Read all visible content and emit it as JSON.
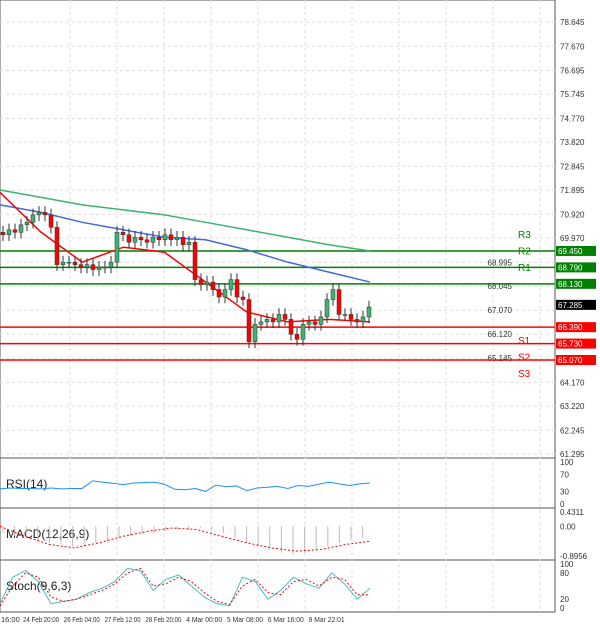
{
  "chart_data": [
    {
      "type": "candlestick",
      "title": "",
      "price_axis": {
        "range": [
          61.295,
          78.645
        ],
        "ticks": [
          "78.645",
          "77.670",
          "76.695",
          "75.745",
          "74.770",
          "73.820",
          "72.845",
          "71.895",
          "70.920",
          "69.970",
          "68.995",
          "68.045",
          "67.070",
          "66.120",
          "65.145",
          "64.170",
          "63.220",
          "62.245",
          "61.295"
        ]
      },
      "time_labels": [
        "16:00",
        "24 Feb 20:00",
        "26 Feb 04:00",
        "27 Feb 12:00",
        "28 Feb 20:00",
        "4 Mar 00:00",
        "5 Mar 08:00",
        "6 Mar 16:00",
        "9 Mar 22:01"
      ],
      "closes": [
        70.1,
        70.3,
        70.2,
        70.5,
        70.6,
        70.9,
        71.0,
        70.9,
        70.4,
        68.9,
        69.0,
        69.0,
        68.9,
        68.8,
        68.9,
        68.7,
        68.8,
        68.8,
        69.0,
        70.2,
        70.1,
        69.8,
        70.0,
        69.9,
        69.8,
        70.0,
        69.9,
        70.1,
        69.9,
        70.0,
        69.7,
        69.8,
        68.3,
        68.1,
        68.2,
        67.9,
        67.6,
        67.9,
        68.3,
        67.6,
        67.5,
        65.8,
        66.5,
        66.6,
        66.7,
        66.6,
        66.9,
        66.7,
        66.1,
        65.9,
        66.5,
        66.6,
        66.5,
        66.8,
        67.5,
        67.9,
        66.9,
        66.9,
        66.7,
        66.6,
        66.8,
        67.2
      ],
      "current_price": "67.285",
      "moving_averages": [
        {
          "color": "#3cb371",
          "values": [
            71.9,
            71.6,
            71.3,
            71.1,
            70.9,
            70.6,
            70.3,
            70.0,
            69.7,
            69.45
          ]
        },
        {
          "color": "#4169e1",
          "values": [
            71.3,
            71.0,
            70.6,
            70.3,
            70.0,
            69.9,
            69.5,
            69.0,
            68.6,
            68.2
          ]
        },
        {
          "color": "#ff0000",
          "values": [
            71.8,
            70.2,
            69.0,
            69.6,
            69.4,
            68.2,
            67.0,
            66.6,
            66.7,
            66.6
          ]
        }
      ],
      "levels": [
        {
          "label": "R3",
          "value": "69.450",
          "color": "#008000"
        },
        {
          "label": "R2",
          "value": "68.790",
          "color": "#008000"
        },
        {
          "label": "R1",
          "value": "68.130",
          "color": "#008000"
        },
        {
          "label": "S1",
          "value": "66.390",
          "color": "#ff0000"
        },
        {
          "label": "S2",
          "value": "65.730",
          "color": "#ff0000"
        },
        {
          "label": "S3",
          "value": "65.070",
          "color": "#ff0000"
        }
      ]
    },
    {
      "type": "line",
      "name": "RSI(14)",
      "range": [
        0,
        100
      ],
      "ticks": [
        "100",
        "70",
        "30",
        "0"
      ],
      "values": [
        36,
        38,
        37,
        37,
        36,
        38,
        36,
        37,
        37,
        55,
        52,
        49,
        46,
        50,
        51,
        52,
        47,
        35,
        34,
        37,
        30,
        45,
        41,
        43,
        32,
        38,
        40,
        42,
        37,
        44,
        42,
        47,
        52,
        48,
        44,
        48,
        50
      ],
      "color": "#1e90ff"
    },
    {
      "type": "bar+line",
      "name": "MACD(12,26,9)",
      "range": [
        -0.8956,
        0.4311
      ],
      "ticks": [
        "0.4311",
        "0.00",
        "-0.8956"
      ],
      "histogram": [
        -0.2,
        -0.3,
        -0.35,
        -0.45,
        -0.5,
        -0.55,
        -0.6,
        -0.6,
        -0.5,
        -0.45,
        -0.35,
        -0.3,
        -0.25,
        -0.2,
        -0.15,
        -0.1,
        -0.1,
        -0.05,
        -0.1,
        -0.2,
        -0.35,
        -0.5,
        -0.6,
        -0.7,
        -0.8,
        -0.85,
        -0.8,
        -0.7,
        -0.6,
        -0.5,
        -0.4,
        -0.35
      ],
      "signal": [
        0.0,
        -0.3,
        -0.55,
        -0.65,
        -0.5,
        -0.3,
        -0.15,
        -0.05,
        -0.1,
        -0.3,
        -0.5,
        -0.65,
        -0.75,
        -0.7,
        -0.55,
        -0.45
      ],
      "color": "#ff0000"
    },
    {
      "type": "line",
      "name": "Stoch(9,6,3)",
      "range": [
        0,
        100
      ],
      "ticks": [
        "100",
        "80",
        "20",
        "0"
      ],
      "main": [
        10,
        70,
        85,
        60,
        10,
        15,
        20,
        35,
        45,
        60,
        90,
        85,
        40,
        65,
        75,
        50,
        25,
        10,
        5,
        70,
        60,
        20,
        40,
        70,
        55,
        45,
        80,
        55,
        20,
        45
      ],
      "signal": [
        5,
        50,
        80,
        70,
        25,
        15,
        20,
        30,
        40,
        55,
        80,
        90,
        50,
        55,
        70,
        60,
        35,
        15,
        8,
        50,
        65,
        35,
        30,
        60,
        65,
        50,
        70,
        65,
        30,
        30
      ],
      "colors": [
        "#40c0c0",
        "#ff0000"
      ]
    }
  ]
}
